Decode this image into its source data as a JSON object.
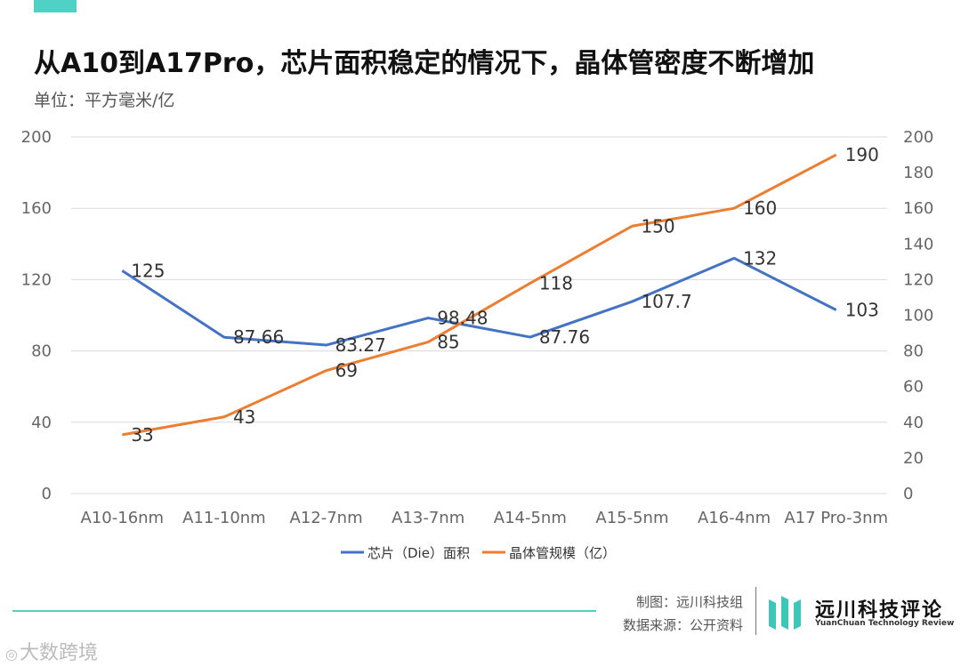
{
  "header": {
    "title": "从A10到A17Pro，芯片面积稳定的情况下，晶体管密度不断增加",
    "unit": "单位：平方毫米/亿"
  },
  "chart_data": {
    "type": "line",
    "title": "从A10到A17Pro，芯片面积稳定的情况下，晶体管密度不断增加",
    "categories": [
      "A10-16nm",
      "A11-10nm",
      "A12-7nm",
      "A13-7nm",
      "A14-5nm",
      "A15-5nm",
      "A16-4nm",
      "A17 Pro-3nm"
    ],
    "series": [
      {
        "name": "芯片（Die）面积",
        "axis": "left",
        "color": "#4472c4",
        "values": [
          125,
          87.66,
          83.27,
          98.48,
          87.76,
          107.7,
          132,
          103
        ],
        "labels": [
          "125",
          "87.66",
          "83.27",
          "98.48",
          "87.76",
          "107.7",
          "132",
          "103"
        ]
      },
      {
        "name": "晶体管规模（亿）",
        "axis": "right",
        "color": "#ed7d31",
        "values": [
          33,
          43,
          69,
          85,
          118,
          150,
          160,
          190
        ],
        "labels": [
          "33",
          "43",
          "69",
          "85",
          "118",
          "150",
          "160",
          "190"
        ]
      }
    ],
    "left_axis": {
      "ylim": [
        0,
        200
      ],
      "ticks": [
        0,
        40,
        80,
        120,
        160,
        200
      ]
    },
    "right_axis": {
      "ylim": [
        0,
        200
      ],
      "ticks": [
        0,
        20,
        40,
        60,
        80,
        100,
        120,
        140,
        160,
        180,
        200
      ]
    },
    "grid": true,
    "legend_position": "bottom"
  },
  "footer": {
    "credit_line1": "制图：远川科技组",
    "credit_line2": "数据来源：公开资料",
    "brand_name": "远川科技评论",
    "brand_sub": "YuanChuan Technology Review",
    "watermark": "大数跨境",
    "watermark_icon": "大数跨境-logo-icon"
  },
  "colors": {
    "accent": "#4fd1c5",
    "series1": "#4472c4",
    "series2": "#ed7d31"
  }
}
